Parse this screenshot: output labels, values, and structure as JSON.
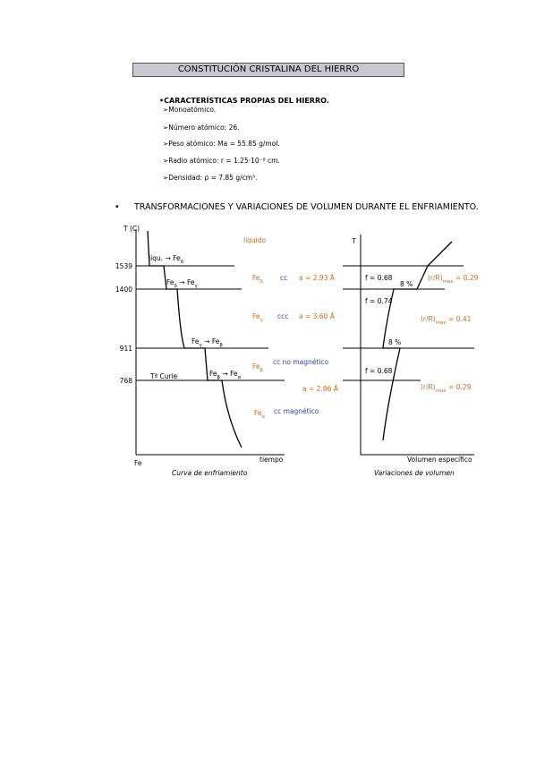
{
  "header": {
    "title": "CONSTITUCIÓN CRISTALINA DEL HIERRO"
  },
  "characteristics": {
    "heading": "•CARACTERÍSTICAS PROPIAS DEL HIERRO.",
    "items": [
      "➢Monoatómico.",
      "➢Número atómico: 26.",
      "➢Peso atómico: Ma = 55.85 g/mol.",
      "➢Radio atómico: r = 1.25·10⁻⁸ cm.",
      "➢Densidad: ρ = 7.85 g/cm³."
    ]
  },
  "section": {
    "bullet": "•",
    "title": "TRANSFORMACIONES Y VARIACIONES DE VOLUMEN DURANTE EL ENFRIAMIENTO."
  },
  "left_diagram": {
    "axis_y": "T (C)",
    "origin": "Fe",
    "axis_x": "tiempo",
    "caption": "Curva de enfriamiento",
    "temperatures": [
      "1539",
      "1400",
      "911",
      "768"
    ],
    "labels": [
      [
        {
          "text": "líquido"
        }
      ],
      [
        {
          "text": "liqu. → Fe"
        },
        {
          "text": "δ",
          "sub": true
        }
      ],
      [
        {
          "text": "Fe"
        },
        {
          "text": "δ",
          "sub": true
        },
        {
          "text": " → Fe"
        },
        {
          "text": "γ",
          "sub": true
        }
      ],
      [
        {
          "text": "Fe"
        },
        {
          "text": "γ",
          "sub": true
        },
        {
          "text": " → Fe"
        },
        {
          "text": "β",
          "sub": true
        }
      ],
      [
        {
          "text": "Tª Curie"
        }
      ],
      [
        {
          "text": "Fe"
        },
        {
          "text": "β",
          "sub": true
        },
        {
          "text": " → Fe"
        },
        {
          "text": "α",
          "sub": true
        }
      ],
      [
        {
          "text": "Fe"
        },
        {
          "text": "δ",
          "sub": true
        }
      ],
      [
        {
          "text": "cc"
        }
      ],
      [
        {
          "text": "a = 2.93 Å"
        }
      ],
      [
        {
          "text": "Fe"
        },
        {
          "text": "γ",
          "sub": true
        }
      ],
      [
        {
          "text": "ccc"
        }
      ],
      [
        {
          "text": "a = 3.60 Å"
        }
      ],
      [
        {
          "text": "Fe"
        },
        {
          "text": "β",
          "sub": true
        }
      ],
      [
        {
          "text": "cc no magnético"
        }
      ],
      [
        {
          "text": "a = 2.86 Å"
        }
      ],
      [
        {
          "text": "Fe"
        },
        {
          "text": "α",
          "sub": true
        }
      ],
      [
        {
          "text": "cc magnético"
        }
      ]
    ]
  },
  "right_diagram": {
    "axis_y": "T",
    "axis_x": "Volumen específico",
    "caption": "Variaciones de volumen",
    "labels": [
      [
        {
          "text": "f = 0.68"
        }
      ],
      [
        {
          "text": "8 %"
        }
      ],
      [
        {
          "text": "(r/R)"
        },
        {
          "text": "max",
          "sub": true
        },
        {
          "text": " = 0.29"
        }
      ],
      [
        {
          "text": "f = 0.74"
        }
      ],
      [
        {
          "text": "(r/R)"
        },
        {
          "text": "max",
          "sub": true
        },
        {
          "text": " = 0.41"
        }
      ],
      [
        {
          "text": "8 %"
        }
      ],
      [
        {
          "text": "f = 0.68"
        }
      ],
      [
        {
          "text": "(r/R)"
        },
        {
          "text": "max",
          "sub": true
        },
        {
          "text": " = 0.29"
        }
      ]
    ]
  }
}
